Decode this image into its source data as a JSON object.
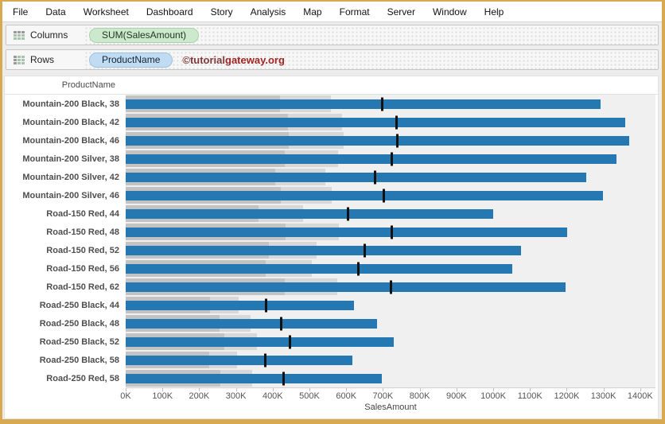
{
  "menu": {
    "items": [
      "File",
      "Data",
      "Worksheet",
      "Dashboard",
      "Story",
      "Analysis",
      "Map",
      "Format",
      "Server",
      "Window",
      "Help"
    ]
  },
  "shelves": {
    "columns_label": "Columns",
    "columns_pill": "SUM(SalesAmount)",
    "rows_label": "Rows",
    "rows_pill": "ProductName",
    "watermark_part1": "©tutorial",
    "watermark_part2": "gateway.org"
  },
  "chart_data": {
    "type": "bar",
    "subtype": "bullet-graph",
    "row_header": "ProductName",
    "xlabel": "SalesAmount",
    "axis_ticks": [
      "0K",
      "100K",
      "200K",
      "300K",
      "400K",
      "500K",
      "600K",
      "700K",
      "800K",
      "900K",
      "1000K",
      "1100K",
      "1200K",
      "1300K",
      "1400K"
    ],
    "axis_range_k": [
      0,
      1441
    ],
    "categories": [
      "Mountain-200 Black, 38",
      "Mountain-200 Black, 42",
      "Mountain-200 Black, 46",
      "Mountain-200 Silver, 38",
      "Mountain-200 Silver, 42",
      "Mountain-200 Silver, 46",
      "Road-150 Red, 44",
      "Road-150 Red, 48",
      "Road-150 Red, 52",
      "Road-150 Red, 56",
      "Road-150 Red, 62",
      "Road-250 Black, 44",
      "Road-250 Black, 48",
      "Road-250 Black, 52",
      "Road-250 Black, 58",
      "Road-250 Red, 58"
    ],
    "series": [
      {
        "name": "SUM(SalesAmount) bar (K)",
        "values": [
          1292,
          1360,
          1370,
          1336,
          1253,
          1299,
          1000,
          1201,
          1076,
          1051,
          1198,
          622,
          685,
          729,
          617,
          697
        ]
      },
      {
        "name": "Reference line / target (K)",
        "values": [
          699,
          736,
          740,
          723,
          678,
          702,
          604,
          725,
          650,
          634,
          721,
          383,
          424,
          447,
          379,
          429
        ]
      }
    ],
    "distribution_bands_pct_of_target": [
      0.6,
      0.8
    ],
    "legend": "none",
    "grid": "off",
    "colors": {
      "bar": "#2678b2",
      "band_60": "#c3c3c3",
      "band_80": "#d8d8d8",
      "reference_line": "#111111",
      "plot_bg": "#f0f0f1"
    }
  }
}
